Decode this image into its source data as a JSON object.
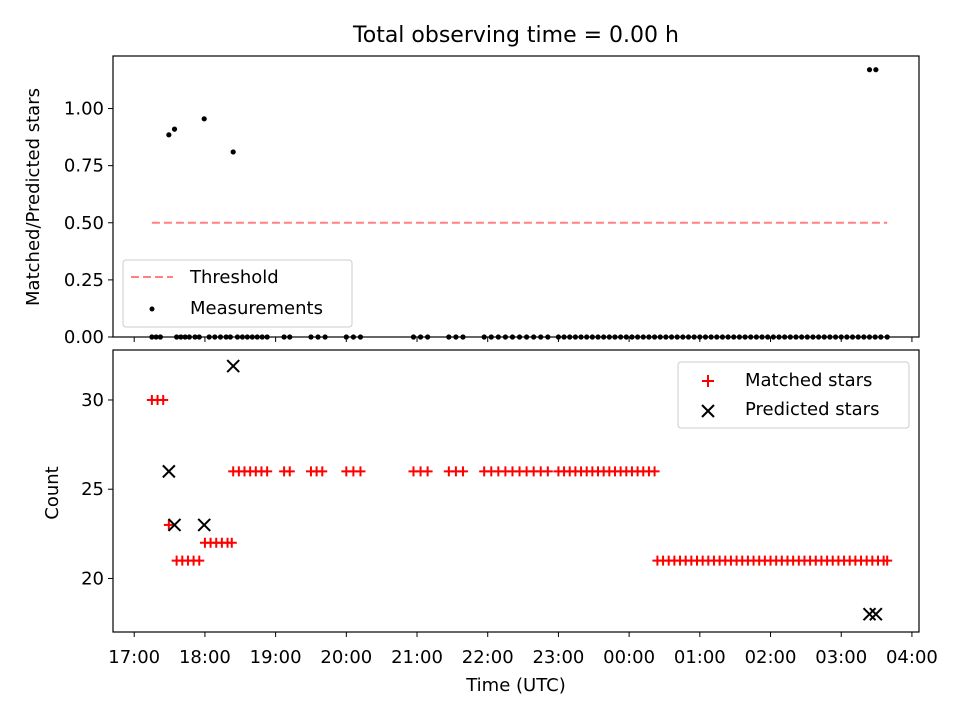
{
  "figure": {
    "title": "Total observing time = 0.00 h",
    "xlabel": "Time (UTC)",
    "x_ticks": [
      "17:00",
      "18:00",
      "19:00",
      "20:00",
      "21:00",
      "22:00",
      "23:00",
      "00:00",
      "01:00",
      "02:00",
      "03:00",
      "04:00"
    ]
  },
  "chart_data": [
    {
      "type": "scatter",
      "title": "Total observing time = 0.00 h",
      "xlabel": "",
      "ylabel": "Matched/Predicted stars",
      "x_unit": "hours since 17:00 UTC",
      "xlim": [
        -0.3,
        11.1
      ],
      "ylim": [
        0,
        1.23
      ],
      "yticks": [
        0.0,
        0.25,
        0.5,
        0.75,
        1.0
      ],
      "ytick_labels": [
        "0.00",
        "0.25",
        "0.50",
        "0.75",
        "1.00"
      ],
      "legend": {
        "position": "lower-left",
        "entries": [
          "Threshold",
          "Measurements"
        ]
      },
      "threshold": {
        "name": "Threshold",
        "value": 0.5,
        "x_range": [
          0.25,
          10.65
        ],
        "color": "#ff8080"
      },
      "measurements": {
        "name": "Measurements",
        "color": "#000000",
        "nonzero": [
          [
            0.49,
            0.885
          ],
          [
            0.57,
            0.91
          ],
          [
            0.99,
            0.955
          ],
          [
            1.4,
            0.81
          ],
          [
            10.4,
            1.17
          ],
          [
            10.49,
            1.17
          ]
        ],
        "zero_x": [
          0.25,
          0.31,
          0.37,
          0.6,
          0.66,
          0.72,
          0.78,
          0.86,
          0.92,
          1.06,
          1.14,
          1.22,
          1.3,
          1.36,
          1.46,
          1.53,
          1.6,
          1.67,
          1.74,
          1.81,
          1.88,
          2.12,
          2.2,
          2.5,
          2.6,
          2.7,
          3.0,
          3.1,
          3.2,
          3.95,
          4.05,
          4.15,
          4.45,
          4.55,
          4.65,
          4.95,
          5.05,
          5.15,
          5.25,
          5.35,
          5.45,
          5.55,
          5.65,
          5.75,
          5.85,
          6.0,
          6.08,
          6.16,
          6.24,
          6.32,
          6.4,
          6.48,
          6.56,
          6.64,
          6.72,
          6.8,
          6.88,
          6.96,
          7.04,
          7.12,
          7.2,
          7.28,
          7.36,
          7.44,
          7.52,
          7.6,
          7.68,
          7.76,
          7.84,
          7.92,
          8.0,
          8.08,
          8.16,
          8.24,
          8.32,
          8.4,
          8.48,
          8.56,
          8.64,
          8.72,
          8.8,
          8.88,
          8.96,
          9.04,
          9.12,
          9.2,
          9.28,
          9.36,
          9.44,
          9.52,
          9.6,
          9.68,
          9.76,
          9.84,
          9.92,
          10.0,
          10.08,
          10.16,
          10.24,
          10.32,
          10.4,
          10.48,
          10.56,
          10.65
        ]
      }
    },
    {
      "type": "scatter",
      "title": "",
      "xlabel": "Time (UTC)",
      "ylabel": "Count",
      "x_unit": "hours since 17:00 UTC",
      "xlim": [
        -0.3,
        11.1
      ],
      "ylim": [
        17,
        32.8
      ],
      "yticks": [
        20,
        25,
        30
      ],
      "ytick_labels": [
        "20",
        "25",
        "30"
      ],
      "legend": {
        "position": "top-right",
        "entries": [
          "Matched stars",
          "Predicted stars"
        ]
      },
      "series": [
        {
          "name": "Matched stars",
          "marker": "plus",
          "color": "#ff0000",
          "groups": [
            {
              "y": 30,
              "x": [
                0.25,
                0.33,
                0.41
              ]
            },
            {
              "y": 23,
              "x": [
                0.49
              ]
            },
            {
              "y": 21,
              "x": [
                0.6,
                0.68,
                0.76,
                0.84,
                0.92
              ]
            },
            {
              "y": 22,
              "x": [
                1.0,
                1.08,
                1.16,
                1.24,
                1.32,
                1.38
              ]
            },
            {
              "y": 26,
              "x": [
                1.4,
                1.48,
                1.56,
                1.64,
                1.72,
                1.8,
                1.88,
                2.12,
                2.2,
                2.5,
                2.58,
                2.66,
                3.0,
                3.1,
                3.2,
                3.95,
                4.05,
                4.15,
                4.45,
                4.55,
                4.65,
                4.95,
                5.05,
                5.15,
                5.25,
                5.35,
                5.45,
                5.55,
                5.65,
                5.75,
                5.85,
                6.0,
                6.08,
                6.16,
                6.24,
                6.32,
                6.4,
                6.48,
                6.56,
                6.64,
                6.72,
                6.8,
                6.88,
                6.96,
                7.04,
                7.12,
                7.2,
                7.28,
                7.36
              ]
            },
            {
              "y": 21,
              "x": [
                7.4,
                7.48,
                7.56,
                7.64,
                7.72,
                7.8,
                7.88,
                7.96,
                8.04,
                8.12,
                8.2,
                8.28,
                8.36,
                8.44,
                8.52,
                8.6,
                8.68,
                8.76,
                8.84,
                8.92,
                9.0,
                9.08,
                9.16,
                9.24,
                9.32,
                9.4,
                9.48,
                9.56,
                9.64,
                9.72,
                9.8,
                9.88,
                9.96,
                10.04,
                10.12,
                10.2,
                10.28,
                10.36,
                10.44,
                10.52,
                10.6,
                10.65
              ]
            }
          ]
        },
        {
          "name": "Predicted stars",
          "marker": "x",
          "color": "#000000",
          "points": [
            [
              0.49,
              26
            ],
            [
              0.57,
              23
            ],
            [
              0.99,
              23
            ],
            [
              1.4,
              31.9
            ],
            [
              10.4,
              18
            ],
            [
              10.49,
              18
            ]
          ]
        }
      ]
    }
  ]
}
